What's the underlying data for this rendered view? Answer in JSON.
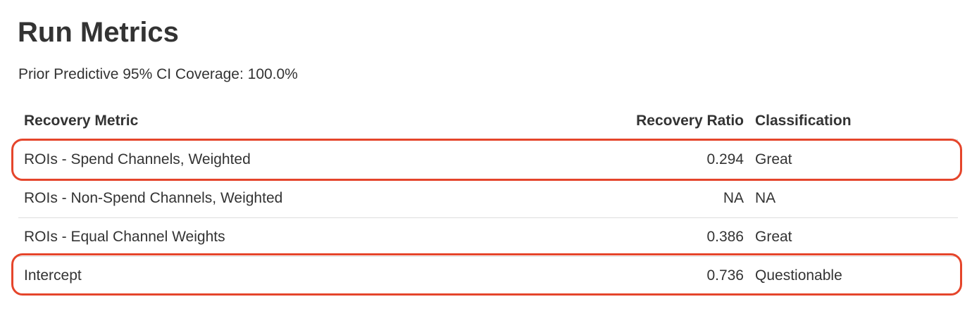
{
  "title": "Run Metrics",
  "coverage": "Prior Predictive 95% CI Coverage: 100.0%",
  "table": {
    "headers": [
      "Recovery Metric",
      "Recovery Ratio",
      "Classification"
    ],
    "rows": [
      {
        "metric": "ROIs - Spend Channels, Weighted",
        "ratio": "0.294",
        "class": "Great",
        "highlighted": true
      },
      {
        "metric": "ROIs - Non-Spend Channels, Weighted",
        "ratio": "NA",
        "class": "NA",
        "highlighted": false
      },
      {
        "metric": "ROIs - Equal Channel Weights",
        "ratio": "0.386",
        "class": "Great",
        "highlighted": false
      },
      {
        "metric": "Intercept",
        "ratio": "0.736",
        "class": "Questionable",
        "highlighted": true
      }
    ]
  },
  "colors": {
    "highlight": "#e5452b",
    "text": "#333333"
  }
}
